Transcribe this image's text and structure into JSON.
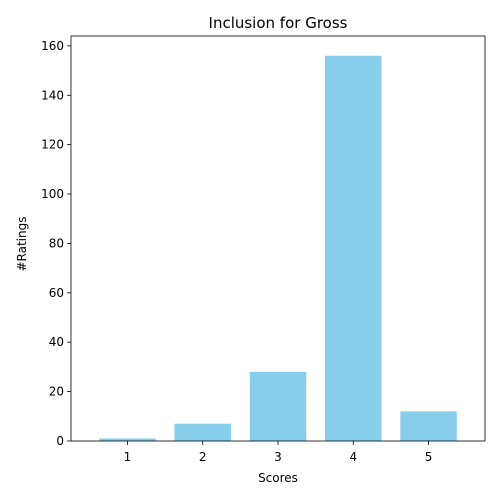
{
  "chart_data": {
    "type": "bar",
    "title": "Inclusion for Gross",
    "xlabel": "Scores",
    "ylabel": "#Ratings",
    "categories": [
      "1",
      "2",
      "3",
      "4",
      "5"
    ],
    "values": [
      1,
      7,
      28,
      156,
      12
    ],
    "ylim": [
      0,
      164
    ],
    "yticks": [
      0,
      20,
      40,
      60,
      80,
      100,
      120,
      140,
      160
    ],
    "grid": false,
    "bar_color": "#87ceeb"
  }
}
